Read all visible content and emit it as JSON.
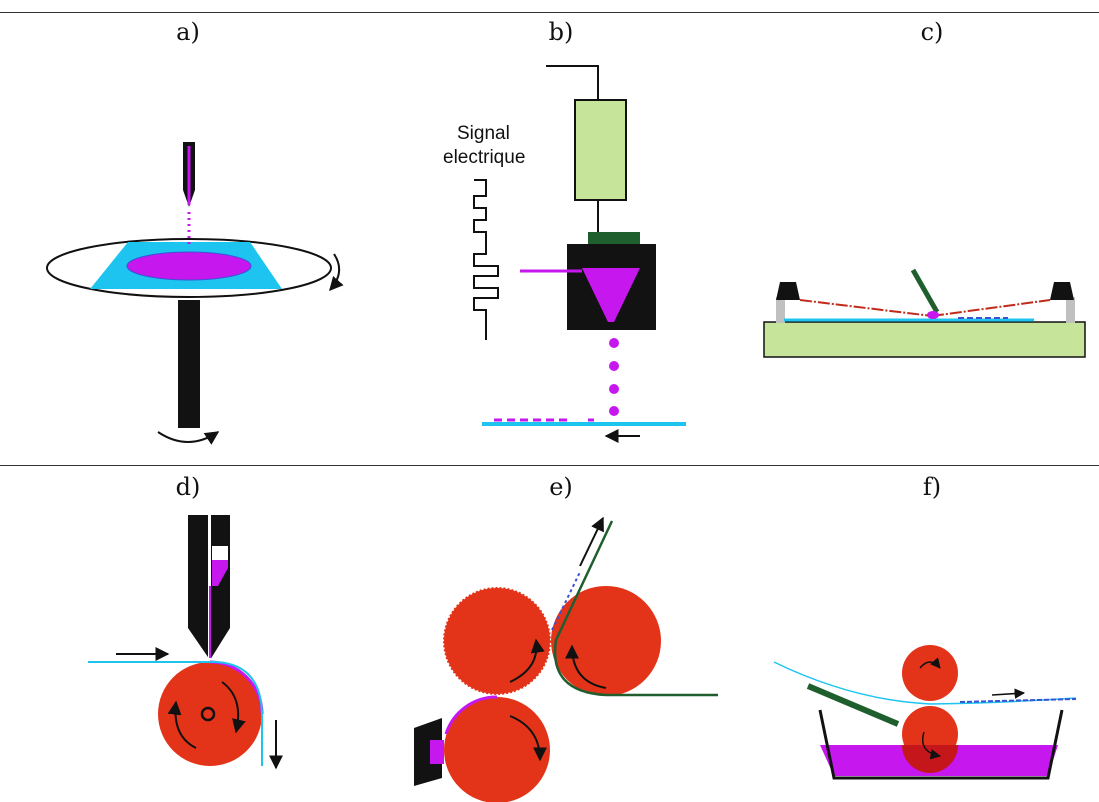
{
  "panels": {
    "a": {
      "label": "a)"
    },
    "b": {
      "label": "b)",
      "signal_line1": "Signal",
      "signal_line2": "electrique"
    },
    "c": {
      "label": "c)"
    },
    "d": {
      "label": "d)"
    },
    "e": {
      "label": "e)"
    },
    "f": {
      "label": "f)"
    }
  },
  "colors": {
    "ink": "#e12b0e",
    "roller": "#e3341a",
    "substrate": "#1ec4f0",
    "black": "#121212",
    "bath": "#c617ef",
    "dark_green": "#1f5f2e",
    "light_green": "#c6e59b",
    "grey": "#c0c0c0",
    "red_line": "#c22b1a",
    "blue_line": "#3b52d4"
  }
}
